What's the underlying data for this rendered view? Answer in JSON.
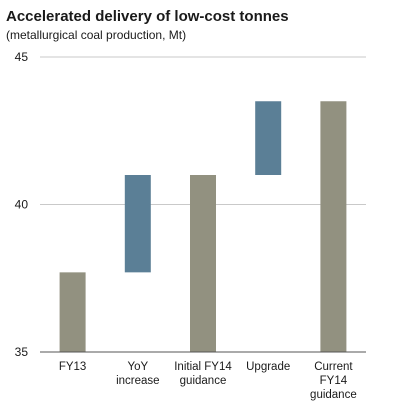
{
  "chart_data": {
    "type": "bar",
    "subtype": "waterfall",
    "title": "Accelerated delivery of low-cost tonnes",
    "subtitle": "(metallurgical coal production, Mt)",
    "xlabel": "",
    "ylabel": "",
    "ylim": [
      35,
      45
    ],
    "yticks": [
      35,
      40,
      45
    ],
    "grid": true,
    "categories": [
      "FY13",
      "YoY increase",
      "Initial FY14 guidance",
      "Upgrade",
      "Current FY14 guidance"
    ],
    "category_lines": [
      [
        "FY13"
      ],
      [
        "YoY",
        "increase"
      ],
      [
        "Initial FY14",
        "guidance"
      ],
      [
        "Upgrade"
      ],
      [
        "Current",
        "FY14",
        "guidance"
      ]
    ],
    "bars": [
      {
        "category": "FY13",
        "kind": "total",
        "start": 35,
        "end": 37.7
      },
      {
        "category": "YoY increase",
        "kind": "increase",
        "start": 37.7,
        "end": 41.0
      },
      {
        "category": "Initial FY14 guidance",
        "kind": "total",
        "start": 35,
        "end": 41.0
      },
      {
        "category": "Upgrade",
        "kind": "increase",
        "start": 41.0,
        "end": 43.5
      },
      {
        "category": "Current FY14 guidance",
        "kind": "total",
        "start": 35,
        "end": 43.5
      }
    ],
    "colors": {
      "total": "#929180",
      "increase": "#5b7f96",
      "grid": "#c9c9c9",
      "axis": "#555555"
    }
  }
}
